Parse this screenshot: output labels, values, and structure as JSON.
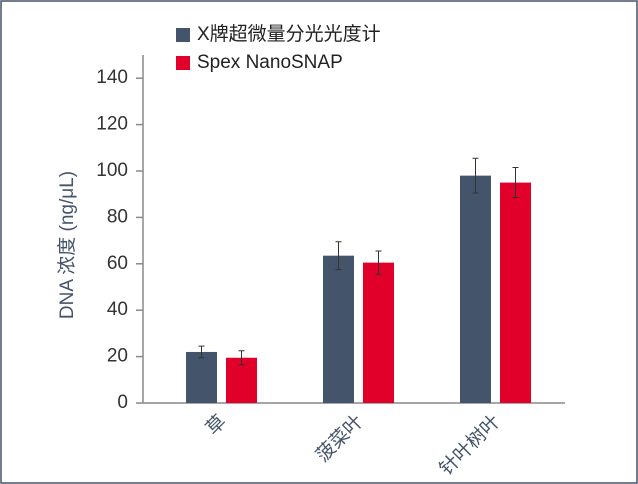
{
  "chart_data": {
    "type": "bar",
    "ylabel": "DNA 浓度 (ng/μL)",
    "categories": [
      "草",
      "菠菜叶",
      "针叶树叶"
    ],
    "series": [
      {
        "name": "X牌超微量分光光度计",
        "color": "#44546a",
        "values": [
          22,
          63.5,
          98
        ],
        "errors": [
          2.5,
          6,
          7.5
        ]
      },
      {
        "name": "Spex NanoSNAP",
        "color": "#e0002a",
        "values": [
          19.5,
          60.5,
          95
        ],
        "errors": [
          3,
          5,
          6.5
        ]
      }
    ],
    "ylim": [
      0,
      150
    ],
    "yticks": [
      0,
      20,
      40,
      60,
      80,
      100,
      120,
      140
    ]
  }
}
